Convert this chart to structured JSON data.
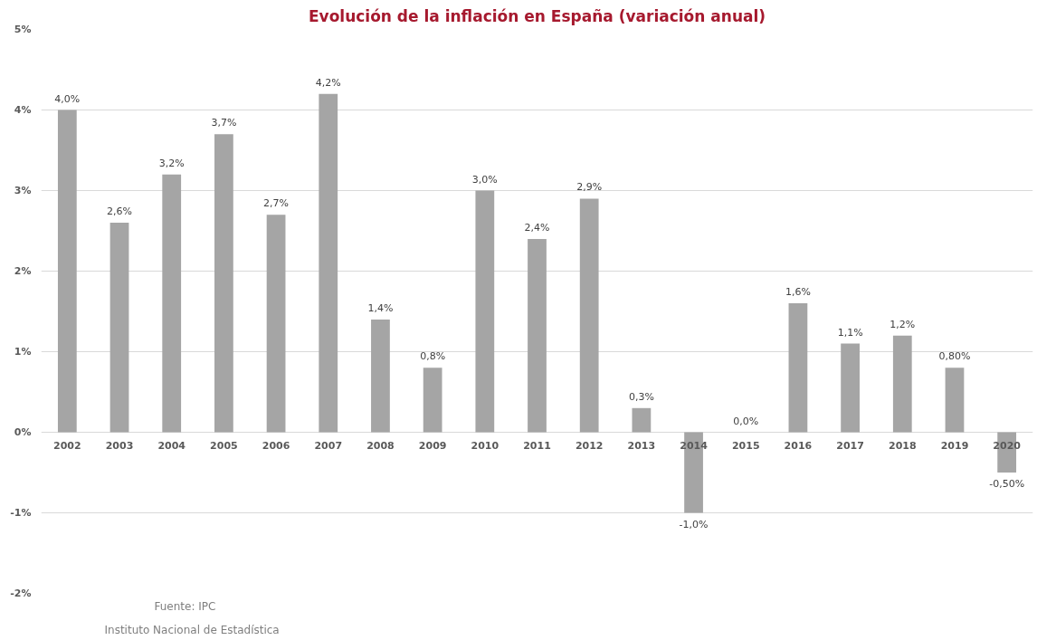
{
  "chart_data": {
    "type": "bar",
    "title": "Evolución de la inflación en España (variación anual)",
    "categories": [
      "2002",
      "2003",
      "2004",
      "2005",
      "2006",
      "2007",
      "2008",
      "2009",
      "2010",
      "2011",
      "2012",
      "2013",
      "2014",
      "2015",
      "2016",
      "2017",
      "2018",
      "2019",
      "2020"
    ],
    "values": [
      4.0,
      2.6,
      3.2,
      3.7,
      2.7,
      4.2,
      1.4,
      0.8,
      3.0,
      2.4,
      2.9,
      0.3,
      -1.0,
      0.0,
      1.6,
      1.1,
      1.2,
      0.8,
      -0.5
    ],
    "value_labels": [
      "4,0%",
      "2,6%",
      "3,2%",
      "3,7%",
      "2,7%",
      "4,2%",
      "1,4%",
      "0,8%",
      "3,0%",
      "2,4%",
      "2,9%",
      "0,3%",
      "-1,0%",
      "0,0%",
      "1,6%",
      "1,1%",
      "1,2%",
      "0,80%",
      "-0,50%"
    ],
    "color": "#a5a5a5",
    "ylim": [
      -2,
      5
    ],
    "yticks": [
      {
        "value": -2,
        "label": "-2%"
      },
      {
        "value": -1,
        "label": "-1%"
      },
      {
        "value": 0,
        "label": "0%"
      },
      {
        "value": 1,
        "label": "1%"
      },
      {
        "value": 2,
        "label": "2%"
      },
      {
        "value": 3,
        "label": "3%"
      },
      {
        "value": 4,
        "label": "4%"
      },
      {
        "value": 5,
        "label": "5%"
      }
    ],
    "grid": "y",
    "annotations": [
      "Fuente:  IPC",
      "Instituto Nacional de Estadística"
    ]
  }
}
